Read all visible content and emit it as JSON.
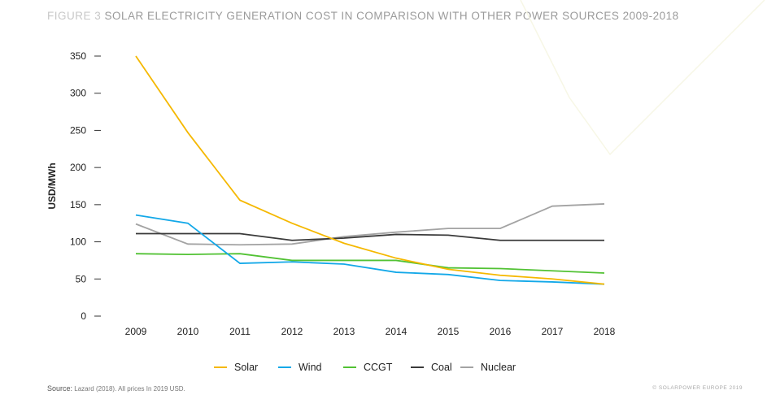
{
  "title_prefix": "FIGURE 3",
  "title": "SOLAR ELECTRICITY GENERATION COST IN COMPARISON WITH OTHER POWER SOURCES 2009-2018",
  "source_label": "Source:",
  "source_text": "Lazard (2018). All prices In 2019 USD.",
  "copyright": "© SOLARPOWER EUROPE 2019",
  "chart_data": {
    "type": "line",
    "ylabel": "USD/MWh",
    "ylim": [
      0,
      350
    ],
    "yticks": [
      0,
      50,
      100,
      150,
      200,
      250,
      300,
      350
    ],
    "categories": [
      "2009",
      "2010",
      "2011",
      "2012",
      "2013",
      "2014",
      "2015",
      "2016",
      "2017",
      "2018"
    ],
    "grid": false,
    "legend": "bottom",
    "series": [
      {
        "name": "Solar",
        "color": "#f5b800",
        "values": [
          350,
          247,
          156,
          125,
          98,
          78,
          63,
          55,
          50,
          43
        ]
      },
      {
        "name": "Wind",
        "color": "#13a8e8",
        "values": [
          136,
          125,
          71,
          73,
          70,
          59,
          56,
          48,
          46,
          43
        ]
      },
      {
        "name": "CCGT",
        "color": "#52c234",
        "values": [
          84,
          83,
          84,
          75,
          75,
          75,
          65,
          64,
          61,
          58
        ]
      },
      {
        "name": "Coal",
        "color": "#3a3a3a",
        "values": [
          111,
          111,
          111,
          102,
          105,
          110,
          109,
          102,
          102,
          102
        ]
      },
      {
        "name": "Nuclear",
        "color": "#a3a3a3",
        "values": [
          124,
          97,
          96,
          97,
          107,
          113,
          118,
          118,
          148,
          151
        ]
      }
    ]
  }
}
